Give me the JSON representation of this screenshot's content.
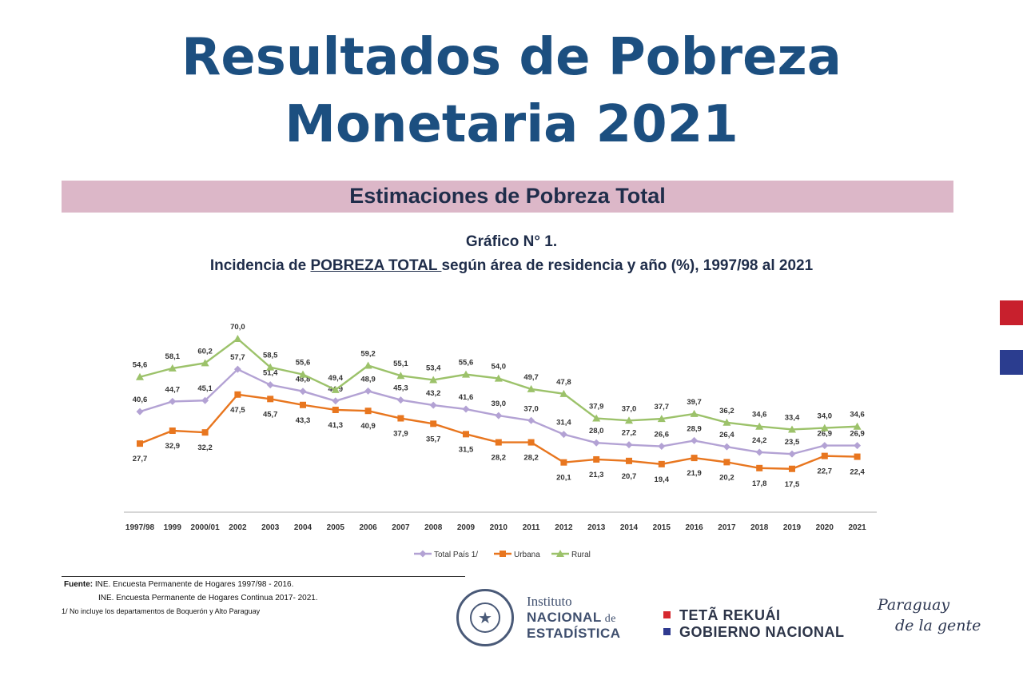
{
  "page": {
    "title_line1": "Resultados de Pobreza",
    "title_line2": "Monetaria 2021",
    "banner": "Estimaciones de Pobreza Total",
    "chart_title_line1": "Gráfico N° 1.",
    "chart_title_prefix": "Incidencia de ",
    "chart_title_underlined": "POBREZA TOTAL ",
    "chart_title_suffix": "según área de residencia y año (%),  1997/98 al 2021"
  },
  "footer": {
    "source_label": "Fuente:",
    "source_line1": " INE.  Encuesta Permanente  de Hogares 1997/98 - 2016.",
    "source_line2": "INE.  Encuesta Permanente de Hogares Continua 2017- 2021.",
    "note": "1/ No  incluye los departamentos de Boquerón y Alto Paraguay",
    "ine_line1": "Instituto",
    "ine_line2a": "NACIONAL",
    "ine_line2b": " de",
    "ine_line3": "ESTADÍSTICA",
    "gov_line1": "TETÃ REKUÁI",
    "gov_line2": "GOBIERNO NACIONAL",
    "gov_colors": [
      "#d6282f",
      "#2f3a8f"
    ],
    "slogan_line1": "Paraguay",
    "slogan_line2": "de la gente"
  },
  "flag_colors": [
    "#c8202d",
    "#ffffff",
    "#2b3d8f"
  ],
  "chart_data": {
    "type": "line",
    "categories": [
      "1997/98",
      "1999",
      "2000/01",
      "2002",
      "2003",
      "2004",
      "2005",
      "2006",
      "2007",
      "2008",
      "2009",
      "2010",
      "2011",
      "2012",
      "2013",
      "2014",
      "2015",
      "2016",
      "2017",
      "2018",
      "2019",
      "2020",
      "2021"
    ],
    "series": [
      {
        "name": "Total País 1/",
        "color": "#b3a2d4",
        "marker": "diamond",
        "values": [
          40.6,
          44.7,
          45.1,
          57.7,
          51.4,
          48.8,
          44.9,
          48.9,
          45.3,
          43.2,
          41.6,
          39.0,
          37.0,
          31.4,
          28.0,
          27.2,
          26.6,
          28.9,
          26.4,
          24.2,
          23.5,
          26.9,
          26.9
        ]
      },
      {
        "name": "Urbana",
        "color": "#e8761f",
        "marker": "square",
        "values": [
          27.7,
          32.9,
          32.2,
          47.5,
          45.7,
          43.3,
          41.3,
          40.9,
          37.9,
          35.7,
          31.5,
          28.2,
          28.2,
          20.1,
          21.3,
          20.7,
          19.4,
          21.9,
          20.2,
          17.8,
          17.5,
          22.7,
          22.4
        ]
      },
      {
        "name": "Rural",
        "color": "#9cc26a",
        "marker": "triangle",
        "values": [
          54.6,
          58.1,
          60.2,
          70.0,
          58.5,
          55.6,
          49.4,
          59.2,
          55.1,
          53.4,
          55.6,
          54.0,
          49.7,
          47.8,
          37.9,
          37.0,
          37.7,
          39.7,
          36.2,
          34.6,
          33.4,
          34.0,
          34.6
        ]
      }
    ],
    "labels": {
      "Total País 1/": [
        "40,6",
        "44,7",
        "45,1",
        "57,7",
        "51,4",
        "48,8",
        "44,9",
        "48,9",
        "45,3",
        "43,2",
        "41,6",
        "39,0",
        "37,0",
        "31,4",
        "28,0",
        "27,2",
        "26,6",
        "28,9",
        "26,4",
        "24,2",
        "23,5",
        "26,9",
        "26,9"
      ],
      "Urbana": [
        "27,7",
        "32,9",
        "32,2",
        "47,5",
        "45,7",
        "43,3",
        "41,3",
        "40,9",
        "37,9",
        "35,7",
        "31,5",
        "28,2",
        "28,2",
        "20,1",
        "21,3",
        "20,7",
        "19,4",
        "21,9",
        "20,2",
        "17,8",
        "17,5",
        "22,7",
        "22,4"
      ],
      "Rural": [
        "54,6",
        "58,1",
        "60,2",
        "70,0",
        "58,5",
        "55,6",
        "49,4",
        "59,2",
        "55,1",
        "53,4",
        "55,6",
        "54,0",
        "49,7",
        "47,8",
        "37,9",
        "37,0",
        "37,7",
        "39,7",
        "36,2",
        "34,6",
        "33,4",
        "34,0",
        "34,6"
      ]
    },
    "ylim": [
      0,
      85
    ],
    "grid": false,
    "legend": "bottom"
  }
}
